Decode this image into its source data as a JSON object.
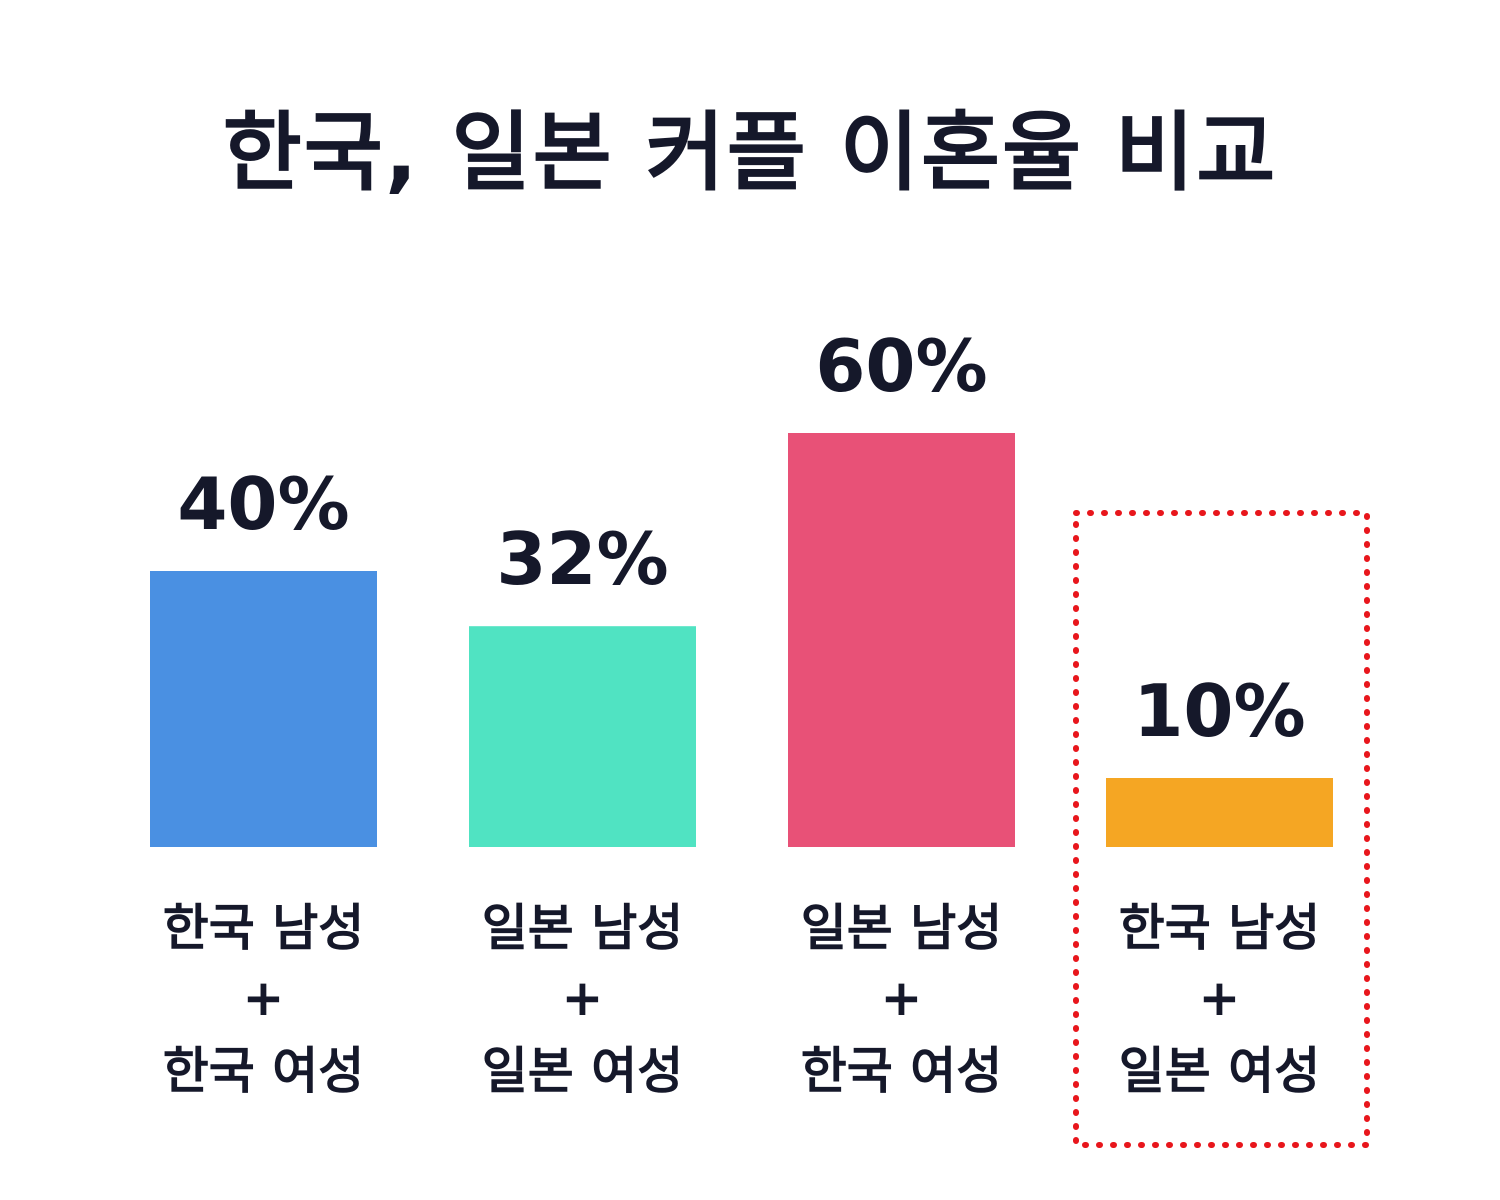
{
  "chart_data": {
    "type": "bar",
    "title": "한국, 일본 커플 이혼율 비교",
    "categories": [
      [
        "한국 남성",
        "+",
        "한국 여성"
      ],
      [
        "일본 남성",
        "+",
        "일본 여성"
      ],
      [
        "일본 남성",
        "+",
        "한국 여성"
      ],
      [
        "한국 남성",
        "+",
        "일본 여성"
      ]
    ],
    "values": [
      40,
      32,
      60,
      10
    ],
    "value_labels": [
      "40%",
      "32%",
      "60%",
      "10%"
    ],
    "colors": [
      "#4a90e2",
      "#50e3c2",
      "#e85177",
      "#f5a623"
    ],
    "highlight_index": 3,
    "highlight_color": "#e8161c",
    "ylim": [
      0,
      100
    ],
    "grid": false,
    "legend": "none"
  }
}
